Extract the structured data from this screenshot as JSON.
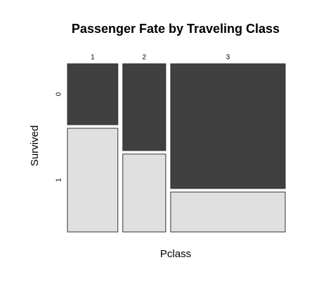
{
  "chart_data": {
    "type": "mosaic",
    "title": "Passenger Fate by Traveling Class",
    "xlabel": "Pclass",
    "ylabel": "Survived",
    "categories": [
      "1",
      "2",
      "3"
    ],
    "series": [
      {
        "name": "0",
        "color": "#404040",
        "values": [
          80,
          97,
          372
        ]
      },
      {
        "name": "1",
        "color": "#e0e0e0",
        "values": [
          136,
          87,
          119
        ]
      }
    ]
  }
}
